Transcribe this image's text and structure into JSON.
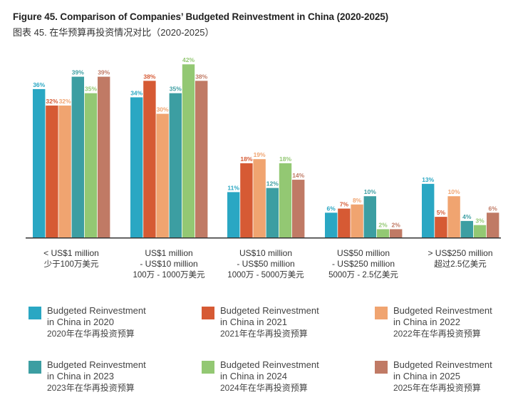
{
  "chart_data": {
    "type": "bar",
    "title": "Figure 45. Comparison of Companies’ Budgeted Reinvestment in China (2020-2025)",
    "subtitle": "图表 45. 在华预算再投资情况对比（2020-2025）",
    "categories": [
      {
        "en": "< US$1 million",
        "en2": "",
        "zh": "少于100万美元"
      },
      {
        "en": "US$1 million",
        "en2": "- US$10 million",
        "zh": "100万 - 1000万美元"
      },
      {
        "en": "US$10 million",
        "en2": "- US$50 million",
        "zh": "1000万 - 5000万美元"
      },
      {
        "en": "US$50 million",
        "en2": "- US$250 million",
        "zh": "5000万 - 2.5亿美元"
      },
      {
        "en": "> US$250 million",
        "en2": "",
        "zh": "超过2.5亿美元"
      }
    ],
    "series": [
      {
        "name": "Budgeted Reinvestment in China in 2020",
        "name_en1": "Budgeted Reinvestment",
        "name_en2": "in China in 2020",
        "name_zh": "2020年在华再投资预算",
        "color": "#2aa7c3",
        "values": [
          36,
          34,
          11,
          6,
          13
        ]
      },
      {
        "name": "Budgeted Reinvestment in China in 2021",
        "name_en1": "Budgeted Reinvestment",
        "name_en2": "in China in 2021",
        "name_zh": "2021年在华再投资预算",
        "color": "#d65a34",
        "values": [
          32,
          38,
          18,
          7,
          5
        ]
      },
      {
        "name": "Budgeted Reinvestment in China in 2022",
        "name_en1": "Budgeted Reinvestment",
        "name_en2": "in China in 2022",
        "name_zh": "2022年在华再投资预算",
        "color": "#f0a470",
        "values": [
          32,
          30,
          19,
          8,
          10
        ]
      },
      {
        "name": "Budgeted Reinvestment in China in 2023",
        "name_en1": "Budgeted Reinvestment",
        "name_en2": "in China in 2023",
        "name_zh": "2023年在华再投资预算",
        "color": "#3c9ea2",
        "values": [
          39,
          35,
          12,
          10,
          4
        ]
      },
      {
        "name": "Budgeted Reinvestment in China in 2024",
        "name_en1": "Budgeted Reinvestment",
        "name_en2": "in China in 2024",
        "name_zh": "2024年在华再投资预算",
        "color": "#93c873",
        "values": [
          35,
          42,
          18,
          2,
          3
        ]
      },
      {
        "name": "Budgeted Reinvestment in China in 2025",
        "name_en1": "Budgeted Reinvestment",
        "name_en2": "in China in 2025",
        "name_zh": "2025年在华再投资预算",
        "color": "#c07a65",
        "values": [
          39,
          38,
          14,
          2,
          6
        ]
      }
    ],
    "value_suffix": "%",
    "ylim": [
      0,
      45
    ],
    "grid": false,
    "legend_position": "bottom"
  }
}
